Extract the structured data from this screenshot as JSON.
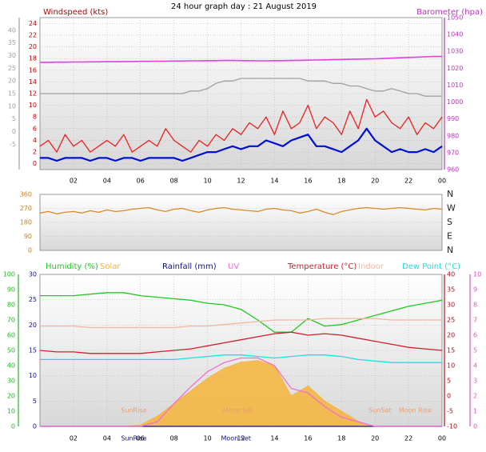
{
  "chart_data": [
    {
      "type": "line",
      "title": "24 hour graph day : 21 August 2019",
      "ylabel": "Windspeed (kts)",
      "y2label": "Barometer (hpa)",
      "grid": true,
      "x": [
        0,
        0.5,
        1,
        1.5,
        2,
        2.5,
        3,
        3.5,
        4,
        4.5,
        5,
        5.5,
        6,
        6.5,
        7,
        7.5,
        8,
        8.5,
        9,
        9.5,
        10,
        10.5,
        11,
        11.5,
        12,
        12.5,
        13,
        13.5,
        14,
        14.5,
        15,
        15.5,
        16,
        16.5,
        17,
        17.5,
        18,
        18.5,
        19,
        19.5,
        20,
        20.5,
        21,
        21.5,
        22,
        22.5,
        23,
        23.5,
        24
      ],
      "xlim": [
        0,
        24
      ],
      "xticks": [
        {
          "value": 2,
          "label": "02"
        },
        {
          "value": 4,
          "label": "04"
        },
        {
          "value": 6,
          "label": "06"
        },
        {
          "value": 8,
          "label": "08"
        },
        10,
        12,
        14,
        16,
        18,
        20,
        22,
        {
          "value": 24,
          "label": "00"
        }
      ],
      "ylim": [
        -1,
        25
      ],
      "yticks": [
        0,
        2,
        4,
        6,
        8,
        10,
        12,
        14,
        16,
        18,
        20,
        22,
        24
      ],
      "y3lim": [
        -15,
        45
      ],
      "y3ticks": [
        -5,
        0,
        5,
        10,
        15,
        20,
        25,
        30,
        35,
        40
      ],
      "y2lim": [
        960,
        1050
      ],
      "y2ticks": [
        960,
        970,
        980,
        990,
        1000,
        1010,
        1020,
        1030,
        1040,
        1050
      ],
      "series": [
        {
          "color": "#a0a0a0",
          "axis": "y3",
          "values": [
            15,
            15,
            15,
            15,
            15,
            15,
            15,
            15,
            15,
            15,
            15,
            15,
            15,
            15,
            15,
            15,
            15,
            15,
            16,
            16,
            17,
            19,
            20,
            20,
            21,
            21,
            21,
            21,
            21,
            21,
            21,
            21,
            20,
            20,
            20,
            19,
            19,
            18,
            18,
            17,
            16,
            16,
            17,
            16,
            15,
            15,
            14,
            14,
            14
          ]
        },
        {
          "color": "#ee2020",
          "values": [
            3,
            4,
            2,
            5,
            3,
            4,
            2,
            3,
            4,
            3,
            5,
            2,
            3,
            4,
            3,
            6,
            4,
            3,
            2,
            4,
            3,
            5,
            4,
            6,
            5,
            7,
            6,
            8,
            5,
            9,
            6,
            7,
            10,
            6,
            8,
            7,
            5,
            9,
            6,
            11,
            8,
            9,
            7,
            6,
            8,
            5,
            7,
            6,
            8
          ]
        },
        {
          "color": "#0010d0",
          "width": 2.2,
          "values": [
            1,
            1,
            0.5,
            1,
            1,
            1,
            0.5,
            1,
            1,
            0.5,
            1,
            1,
            0.5,
            1,
            1,
            1,
            1,
            0.5,
            1,
            1.5,
            2,
            2,
            2.5,
            3,
            2.5,
            3,
            3,
            4,
            3.5,
            3,
            4,
            4.5,
            5,
            3,
            3,
            2.5,
            2,
            3,
            4,
            6,
            4,
            3,
            2,
            2.5,
            2,
            2,
            2.5,
            2,
            3
          ]
        },
        {
          "color": "#e040e0",
          "axis": "y2",
          "width": 1.6,
          "values": [
            1023.5,
            1023.5,
            1023.6,
            1023.6,
            1023.7,
            1023.7,
            1023.8,
            1023.8,
            1023.9,
            1023.9,
            1024,
            1024,
            1024.1,
            1024.1,
            1024.2,
            1024.2,
            1024.3,
            1024.3,
            1024.4,
            1024.4,
            1024.5,
            1024.5,
            1024.6,
            1024.6,
            1024.5,
            1024.5,
            1024.4,
            1024.4,
            1024.5,
            1024.5,
            1024.6,
            1024.7,
            1024.8,
            1024.9,
            1025,
            1025.1,
            1025.2,
            1025.3,
            1025.4,
            1025.5,
            1025.6,
            1025.8,
            1026,
            1026.2,
            1026.4,
            1026.6,
            1026.8,
            1027,
            1027
          ]
        }
      ]
    },
    {
      "type": "line",
      "grid": true,
      "x": [
        0,
        0.5,
        1,
        1.5,
        2,
        2.5,
        3,
        3.5,
        4,
        4.5,
        5,
        5.5,
        6,
        6.5,
        7,
        7.5,
        8,
        8.5,
        9,
        9.5,
        10,
        10.5,
        11,
        11.5,
        12,
        12.5,
        13,
        13.5,
        14,
        14.5,
        15,
        15.5,
        16,
        16.5,
        17,
        17.5,
        18,
        18.5,
        19,
        19.5,
        20,
        20.5,
        21,
        21.5,
        22,
        22.5,
        23,
        23.5,
        24
      ],
      "xlim": [
        0,
        24
      ],
      "ylim": [
        0,
        360
      ],
      "yticks": [
        0,
        90,
        180,
        270,
        360
      ],
      "y2lim": [
        0,
        360
      ],
      "y2ticks": [
        {
          "value": 0,
          "label": "N"
        },
        {
          "value": 90,
          "label": "E"
        },
        {
          "value": 180,
          "label": "S"
        },
        {
          "value": 270,
          "label": "W"
        },
        {
          "value": 360,
          "label": "N"
        }
      ],
      "series": [
        {
          "color": "#d88a28",
          "values": [
            240,
            250,
            235,
            245,
            250,
            240,
            255,
            245,
            260,
            250,
            255,
            265,
            270,
            275,
            260,
            250,
            265,
            270,
            255,
            245,
            260,
            270,
            275,
            265,
            260,
            255,
            250,
            265,
            270,
            260,
            255,
            240,
            250,
            265,
            245,
            230,
            250,
            260,
            270,
            275,
            270,
            265,
            270,
            275,
            270,
            265,
            260,
            270,
            265
          ]
        }
      ]
    },
    {
      "type": "line",
      "grid": true,
      "legend": true,
      "x": [
        0,
        1,
        2,
        3,
        4,
        5,
        6,
        7,
        8,
        9,
        10,
        11,
        12,
        13,
        14,
        15,
        16,
        17,
        18,
        19,
        20,
        21,
        22,
        23,
        24
      ],
      "xlim": [
        0,
        24
      ],
      "xticks": [
        {
          "value": 2,
          "label": "02"
        },
        {
          "value": 4,
          "label": "04"
        },
        {
          "value": 6,
          "label": "06"
        },
        {
          "value": 8,
          "label": "08"
        },
        10,
        12,
        14,
        16,
        18,
        20,
        22,
        {
          "value": 24,
          "label": "00"
        }
      ],
      "ylim": [
        0,
        100
      ],
      "yticks": [
        0,
        10,
        20,
        30,
        40,
        50,
        60,
        70,
        80,
        90,
        100
      ],
      "y3lim": [
        0,
        30
      ],
      "y3ticks": [
        0,
        5,
        10,
        15,
        20,
        25,
        30
      ],
      "y2lim": [
        -10,
        40
      ],
      "y2ticks": [
        -10,
        -5,
        0,
        5,
        10,
        15,
        20,
        25,
        30,
        35,
        40
      ],
      "y4lim": [
        0,
        10
      ],
      "y4ticks": [
        0,
        1,
        2,
        3,
        4,
        5,
        6,
        7,
        8,
        9,
        10
      ],
      "annotations": [
        {
          "text": "SunRise",
          "x": 5.6
        },
        {
          "text": "Moon Set",
          "x": 11.8
        },
        {
          "text": "SunSet",
          "x": 20.3
        },
        {
          "text": "Moon Rise",
          "x": 22.4
        }
      ],
      "axis_annotations": [
        {
          "text": "SunRise",
          "x": 5.6
        },
        {
          "text": "Moon Set",
          "x": 11.7
        }
      ],
      "series": [
        {
          "name": "Humidity (%)",
          "color": "#22c822",
          "values": [
            86,
            86,
            86,
            87,
            88,
            88,
            86,
            85,
            84,
            83,
            81,
            80,
            77,
            70,
            62,
            62,
            71,
            66,
            67,
            70,
            73,
            76,
            79,
            81,
            83
          ]
        },
        {
          "name": "Solar",
          "color": "#f5b43a",
          "axis": "y3",
          "area": true,
          "values": [
            0,
            0,
            0,
            0,
            0,
            0,
            0.3,
            2,
            4.5,
            7,
            9.5,
            11.5,
            12.7,
            13,
            12,
            6,
            8,
            5,
            3,
            1,
            0,
            0,
            0,
            0,
            0
          ]
        },
        {
          "name": "Rainfall (mm)",
          "color": "#10108a",
          "axis": "y3",
          "values": [
            0,
            0,
            0,
            0,
            0,
            0,
            0,
            0,
            0,
            0,
            0,
            0,
            0,
            0,
            0,
            0,
            0,
            0,
            0,
            0,
            0,
            0,
            0,
            0,
            0
          ]
        },
        {
          "name": "UV",
          "color": "#f070d0",
          "axis": "y4",
          "values": [
            0,
            0,
            0,
            0,
            0,
            0,
            0,
            0.3,
            1.5,
            2.6,
            3.6,
            4.2,
            4.5,
            4.5,
            4,
            2.5,
            2.2,
            1.3,
            0.6,
            0.3,
            0,
            0,
            0,
            0,
            0
          ]
        },
        {
          "name": "Temperature (°C)",
          "color": "#cc2030",
          "axis": "y2",
          "values": [
            15,
            14.5,
            14.5,
            14,
            14,
            14,
            14,
            14.5,
            15,
            15.5,
            16.5,
            17.5,
            18.5,
            19.5,
            20.5,
            21,
            20,
            20.5,
            20,
            19,
            18,
            17,
            16,
            15.5,
            15
          ]
        },
        {
          "name": "Indoor",
          "color": "#f0b8a0",
          "axis": "y2",
          "values": [
            23,
            23,
            23,
            22.5,
            22.5,
            22.5,
            22.5,
            22.5,
            22.5,
            23,
            23,
            23.5,
            24,
            24.5,
            25,
            25,
            25,
            25.5,
            25.5,
            25.5,
            25.5,
            25,
            25,
            25,
            25
          ]
        },
        {
          "name": "Dew Point (°C)",
          "color": "#20dede",
          "axis": "y2",
          "values": [
            12,
            12,
            12,
            12,
            12,
            12,
            12,
            12,
            12,
            12.5,
            13,
            13.5,
            13.5,
            13,
            12.5,
            13,
            13.5,
            13.5,
            13,
            12,
            11.5,
            11,
            11,
            11,
            11
          ]
        }
      ]
    }
  ]
}
